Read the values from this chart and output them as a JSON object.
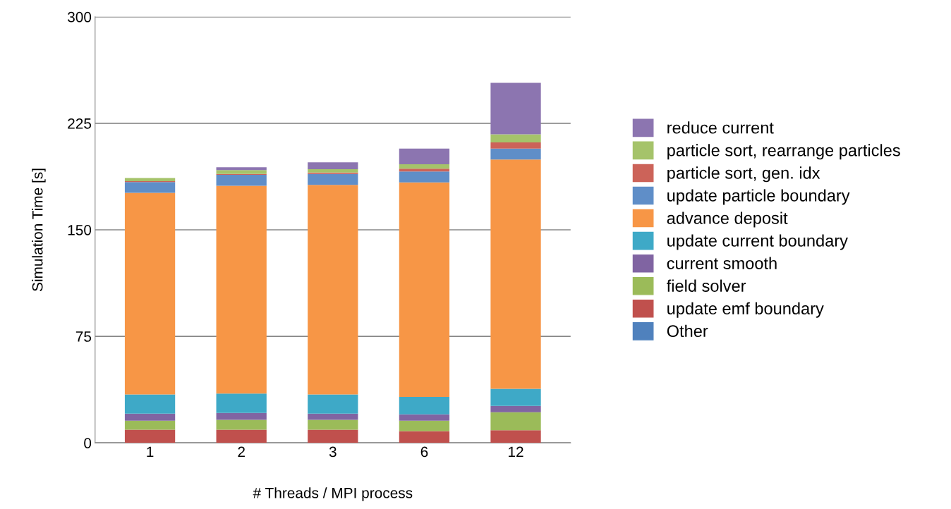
{
  "chart_data": {
    "type": "bar",
    "stacked": true,
    "xlabel": "# Threads / MPI process",
    "ylabel": "Simulation Time [s]",
    "categories": [
      "1",
      "2",
      "3",
      "6",
      "12"
    ],
    "ylim": [
      0,
      300
    ],
    "yticks": [
      0,
      75,
      150,
      225,
      300
    ],
    "grid": "y",
    "legend": "right",
    "series": [
      {
        "name": "Other",
        "color": "#4f81bd",
        "values": [
          0,
          0,
          0,
          0,
          0
        ]
      },
      {
        "name": "update emf boundary",
        "color": "#c0504d",
        "values": [
          9.3,
          9.3,
          9.3,
          8.3,
          8.9
        ]
      },
      {
        "name": "field solver",
        "color": "#9bbb59",
        "values": [
          6.3,
          6.9,
          6.9,
          7.3,
          12.7
        ]
      },
      {
        "name": "current smooth",
        "color": "#8064a2",
        "values": [
          5.0,
          4.8,
          4.4,
          4.4,
          4.4
        ]
      },
      {
        "name": "update current boundary",
        "color": "#3ea9c7",
        "values": [
          13.5,
          13.7,
          13.5,
          12.3,
          12.1
        ]
      },
      {
        "name": "advance deposit",
        "color": "#f79646",
        "values": [
          141.9,
          146.3,
          147.5,
          151.1,
          161.4
        ]
      },
      {
        "name": "update particle boundary",
        "color": "#5f8ec8",
        "values": [
          7.6,
          7.7,
          7.7,
          7.7,
          7.7
        ]
      },
      {
        "name": "particle sort, gen. idx",
        "color": "#cc6359",
        "values": [
          0.6,
          0.6,
          1.0,
          2.0,
          4.4
        ]
      },
      {
        "name": "particle sort, rearrange particles",
        "color": "#a5c36a",
        "values": [
          2.3,
          2.8,
          2.4,
          3.0,
          5.7
        ]
      },
      {
        "name": "reduce current",
        "color": "#8c75b0",
        "values": [
          0,
          2.0,
          4.8,
          11.1,
          36.2
        ]
      }
    ]
  }
}
